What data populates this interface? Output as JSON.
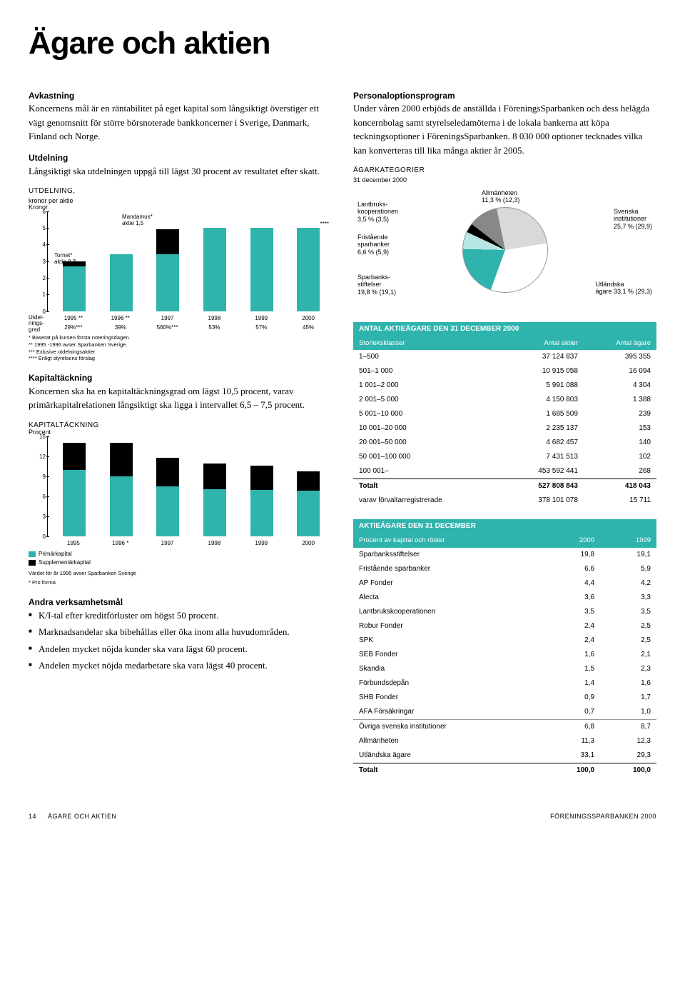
{
  "title": "Ägare och aktien",
  "left": {
    "avkastning": {
      "head": "Avkastning",
      "body": "Koncernens mål är en räntabilitet på eget kapital som långsiktigt överstiger ett vägt genomsnitt för större börsnoterade bankkoncerner i Sverige, Danmark, Finland och Norge."
    },
    "utdelning": {
      "head": "Utdelning",
      "body": "Långsiktigt ska utdelningen uppgå till lägst 30 procent av resultatet efter skatt."
    },
    "chart1": {
      "caps": "UTDELNING,",
      "sub": "kronor per aktie",
      "ylabel": "Kronor",
      "ymax": 6,
      "yticks": [
        6,
        5,
        4,
        3,
        2,
        1,
        0
      ],
      "annot1": "Tornet*\naktie 0,3",
      "annot2": "Mandamus*\naktie 1,5",
      "annot3": "****",
      "years": [
        "1995 **",
        "1996 **",
        "1997",
        "1998",
        "1999",
        "2000"
      ],
      "teal_bars": [
        2.7,
        3.4,
        3.4,
        5.0,
        5.0,
        5.0
      ],
      "black_bars": [
        0.3,
        0,
        1.5,
        0,
        0,
        0
      ],
      "row2_head": "Utdel-\nnings-\ngrad",
      "row2": [
        "29%***",
        "39%",
        "560%***",
        "53%",
        "57%",
        "45%"
      ],
      "footnotes": [
        "* Baserat på kursen första noteringsdagen.",
        "** 1995 -1996 avser Sparbanken Sverige.",
        "*** Exlusive utdelningsaktier",
        "**** Enligt styrelsens förslag"
      ]
    },
    "kapital": {
      "head": "Kapitaltäckning",
      "body": "Koncernen ska ha en kapitaltäckningsgrad om lägst 10,5 procent, varav primärkapitalrelationen långsiktigt ska ligga i intervallet 6,5 – 7,5 procent."
    },
    "chart2": {
      "caps": "KAPITALTÄCKNING",
      "ylabel": "Procent",
      "ymax": 15,
      "yticks": [
        15,
        12,
        9,
        6,
        3,
        0
      ],
      "years": [
        "1995",
        "1996 *",
        "1997",
        "1998",
        "1999",
        "2000"
      ],
      "teal_bars": [
        10.0,
        9.0,
        7.5,
        7.1,
        7.0,
        6.9
      ],
      "black_bars": [
        4.0,
        5.0,
        4.3,
        3.8,
        3.6,
        2.9
      ],
      "legend": [
        {
          "color": "#2fb3ad",
          "label": "Primärkapital"
        },
        {
          "color": "#000000",
          "label": "Supplementärkapital"
        }
      ],
      "note1": "Värdet för år 1995 avser Sparbanken Sverige",
      "note2": "* Pro forma"
    },
    "andra": {
      "head": "Andra verksamhetsmål",
      "bullets": [
        "K/I-tal efter kreditförluster om högst 50 procent.",
        "Marknadsandelar ska bibehållas eller öka inom alla huvudområden.",
        "Andelen mycket nöjda kunder ska vara lägst 60 procent.",
        "Andelen mycket nöjda medarbetare ska vara lägst 40 procent."
      ]
    }
  },
  "right": {
    "personal": {
      "head": "Personaloptionsprogram",
      "body": "Under våren 2000 erbjöds de anställda i FöreningsSparbanken och dess helägda koncernbolag samt styrelseledamöterna i de lokala bankerna att köpa teckningsoptioner i FöreningsSparbanken. 8 030 000 optioner tecknades vilka kan konverteras till lika många aktier år 2005."
    },
    "pie": {
      "caps": "ÄGARKATEGORIER",
      "sub": "31 december 2000",
      "slices": [
        {
          "label": "Sparbanks-\nstiftelser\n19,8 % (19,1)",
          "color": "#2fb3ad",
          "pct": 19.8
        },
        {
          "label": "Fristående\nsparbanker\n6,6 % (5,9)",
          "color": "#b8e6e3",
          "pct": 6.6
        },
        {
          "label": "Lantbruks-\nkooperationen\n3,5 % (3,5)",
          "color": "#000000",
          "pct": 3.5
        },
        {
          "label": "Allmänheten\n11,3 % (12,3)",
          "color": "#888888",
          "pct": 11.3
        },
        {
          "label": "Svenska\ninstitutioner\n25,7 % (29,9)",
          "color": "#d9d9d9",
          "pct": 25.7
        },
        {
          "label": "Utländska\nägare 33,1 % (29,3)",
          "color": "#ffffff",
          "pct": 33.1
        }
      ]
    },
    "table1": {
      "title": "ANTAL AKTIEÄGARE DEN 31 DECEMBER 2000",
      "cols": [
        "Storleksklasser",
        "Antal aktier",
        "Antal ägare"
      ],
      "rows": [
        [
          "1–500",
          "37 124 837",
          "395 355"
        ],
        [
          "501–1 000",
          "10 915 058",
          "16 094"
        ],
        [
          "1 001–2 000",
          "5 991 088",
          "4 304"
        ],
        [
          "2 001–5 000",
          "4 150 803",
          "1 388"
        ],
        [
          "5 001–10 000",
          "1 685 509",
          "239"
        ],
        [
          "10 001–20 000",
          "2 235 137",
          "153"
        ],
        [
          "20 001–50 000",
          "4 682 457",
          "140"
        ],
        [
          "50 001–100 000",
          "7 431 513",
          "102"
        ],
        [
          "100 001–",
          "453 592 441",
          "268"
        ]
      ],
      "total": [
        "Totalt",
        "527 808 843",
        "418 043"
      ],
      "extra": [
        "varav förvaltarregistrerade",
        "378 101 078",
        "15 711"
      ]
    },
    "table2": {
      "title": "AKTIEÄGARE DEN 31 DECEMBER",
      "cols": [
        "Procent av kapital och röster",
        "2000",
        "1999"
      ],
      "rows": [
        [
          "Sparbanksstiftelser",
          "19,8",
          "19,1"
        ],
        [
          "Fristående sparbanker",
          "6,6",
          "5,9"
        ],
        [
          "AP Fonder",
          "4,4",
          "4,2"
        ],
        [
          "Alecta",
          "3,6",
          "3,3"
        ],
        [
          "Lantbrukskooperationen",
          "3,5",
          "3,5"
        ],
        [
          "Robur Fonder",
          "2,4",
          "2,5"
        ],
        [
          "SPK",
          "2,4",
          "2,5"
        ],
        [
          "SEB Fonder",
          "1,6",
          "2,1"
        ],
        [
          "Skandia",
          "1,5",
          "2,3"
        ],
        [
          "Förbundsdepån",
          "1,4",
          "1,6"
        ],
        [
          "SHB Fonder",
          "0,9",
          "1,7"
        ],
        [
          "AFA Försäkringar",
          "0,7",
          "1,0"
        ]
      ],
      "rows2": [
        [
          "Övriga svenska institutioner",
          "6,8",
          "8,7"
        ],
        [
          "Allmänheten",
          "11,3",
          "12,3"
        ],
        [
          "Utländska ägare",
          "33,1",
          "29,3"
        ]
      ],
      "total": [
        "Totalt",
        "100,0",
        "100,0"
      ]
    }
  },
  "footer": {
    "page": "14",
    "left": "ÄGARE OCH AKTIEN",
    "right": "FÖRENINGSSPARBANKEN 2000"
  },
  "colors": {
    "teal": "#2fb3ad",
    "black": "#000000",
    "lightteal": "#b8e6e3",
    "grey": "#888888",
    "lightgrey": "#d9d9d9",
    "white": "#ffffff"
  }
}
